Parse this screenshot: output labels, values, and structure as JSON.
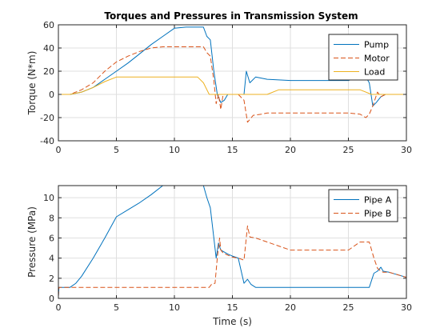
{
  "window": {
    "title": "Torques and Pressures in Transmission System"
  },
  "chart_data": [
    {
      "type": "line",
      "title": "Torques and Pressures in Transmission System",
      "xlabel": "",
      "ylabel": "Torque (N*m)",
      "xlim": [
        0,
        30
      ],
      "ylim": [
        -40,
        60
      ],
      "xticks": [
        "0",
        "5",
        "10",
        "15",
        "20",
        "25",
        "30"
      ],
      "yticks": [
        "-40",
        "-20",
        "0",
        "20",
        "40",
        "60"
      ],
      "grid": true,
      "legend_placement": "top-right",
      "series": [
        {
          "name": "Pump",
          "color": "#0072BD",
          "dash": "solid",
          "x": [
            0,
            1,
            2,
            3,
            4,
            5,
            6,
            7,
            8,
            9,
            10,
            11,
            12,
            12.5,
            12.8,
            13.1,
            13.4,
            13.7,
            14.0,
            14.3,
            14.6,
            15.0,
            15.5,
            16.0,
            16.2,
            16.5,
            17,
            18,
            20,
            25,
            26,
            26.5,
            26.8,
            27.1,
            27.4,
            27.8,
            28.2,
            28.5,
            30
          ],
          "y": [
            0,
            0,
            2,
            6,
            13,
            20,
            27,
            35,
            43,
            50,
            57,
            58,
            58,
            58,
            50,
            47,
            20,
            0,
            -7,
            -5,
            0,
            0,
            0,
            0,
            20,
            10,
            15,
            13,
            12,
            12,
            15,
            15,
            10,
            -10,
            -7,
            -2,
            0,
            0,
            0
          ]
        },
        {
          "name": "Motor",
          "color": "#D95319",
          "dash": "dashed",
          "x": [
            0,
            1,
            2,
            3,
            4,
            5,
            6,
            7,
            8,
            9,
            10,
            11,
            12,
            12.5,
            12.8,
            13.1,
            13.4,
            13.6,
            13.8,
            14.0,
            14.2,
            14.6,
            15.0,
            15.5,
            16.0,
            16.3,
            16.8,
            17.5,
            18,
            20,
            25,
            26,
            26.5,
            26.8,
            27.1,
            27.5,
            27.8,
            28.2,
            28.5,
            30
          ],
          "y": [
            0,
            0,
            4,
            10,
            20,
            28,
            33,
            37,
            40,
            41,
            41,
            41,
            41,
            41,
            36,
            33,
            12,
            -8,
            0,
            -13,
            0,
            0,
            0,
            0,
            -5,
            -24,
            -18,
            -17,
            -16,
            -16,
            -16,
            -17,
            -20,
            -17,
            -10,
            2,
            -2,
            0,
            0,
            0
          ]
        },
        {
          "name": "Load",
          "color": "#EDB120",
          "dash": "solid",
          "x": [
            0,
            1,
            2,
            3,
            4,
            5,
            6,
            12,
            12.5,
            13,
            17,
            18,
            19,
            25,
            26,
            27,
            28,
            30
          ],
          "y": [
            0,
            0,
            2,
            6,
            11,
            15,
            15,
            15,
            10,
            0,
            0,
            0,
            4,
            4,
            4,
            0,
            0,
            0
          ]
        }
      ]
    },
    {
      "type": "line",
      "title": "",
      "xlabel": "Time (s)",
      "ylabel": "Pressure (MPa)",
      "xlim": [
        0,
        30
      ],
      "ylim": [
        0,
        11.2
      ],
      "xticks": [
        "0",
        "5",
        "10",
        "15",
        "20",
        "25",
        "30"
      ],
      "yticks": [
        "0",
        "2",
        "4",
        "6",
        "8",
        "10"
      ],
      "grid": true,
      "legend_placement": "top-right",
      "series": [
        {
          "name": "Pipe A",
          "color": "#0072BD",
          "dash": "solid",
          "x": [
            0,
            0.05,
            1,
            1.5,
            2,
            3,
            4,
            5,
            6,
            7,
            8,
            9,
            10,
            11,
            12,
            12.5,
            12.8,
            13.1,
            13.4,
            13.6,
            13.8,
            14.0,
            14.3,
            14.6,
            15.0,
            15.5,
            16.0,
            16.3,
            16.6,
            17,
            18,
            20,
            25,
            26,
            26.8,
            27.2,
            27.5,
            27.8,
            28.0,
            28.5,
            30
          ],
          "y": [
            0.2,
            1.1,
            1.1,
            1.5,
            2.2,
            4,
            6,
            8.1,
            8.8,
            9.5,
            10.3,
            11.2,
            11.2,
            11.2,
            11.2,
            11.2,
            10.0,
            9.0,
            6.0,
            4.0,
            5.5,
            4.8,
            4.6,
            4.4,
            4.2,
            4.0,
            1.5,
            1.9,
            1.4,
            1.1,
            1.1,
            1.1,
            1.1,
            1.1,
            1.1,
            2.5,
            2.7,
            3.1,
            2.7,
            2.6,
            2.1
          ]
        },
        {
          "name": "Pipe B",
          "color": "#D95319",
          "dash": "dashed",
          "x": [
            0,
            0.05,
            1,
            5,
            10,
            12,
            13,
            13.2,
            13.5,
            13.7,
            13.9,
            14.0,
            14.2,
            14.6,
            15.0,
            15.5,
            16.0,
            16.3,
            16.5,
            17,
            18,
            20,
            25,
            26,
            26.8,
            27.2,
            27.5,
            27.8,
            28.0,
            28.5,
            30
          ],
          "y": [
            0.2,
            1.1,
            1.1,
            1.1,
            1.1,
            1.1,
            1.1,
            1.4,
            1.5,
            4.0,
            6.0,
            4.8,
            4.5,
            4.3,
            4.1,
            4.0,
            3.8,
            7.2,
            6.1,
            6.0,
            5.6,
            4.8,
            4.8,
            5.6,
            5.6,
            4.0,
            3.0,
            2.7,
            2.6,
            2.6,
            2.1
          ]
        }
      ]
    }
  ]
}
